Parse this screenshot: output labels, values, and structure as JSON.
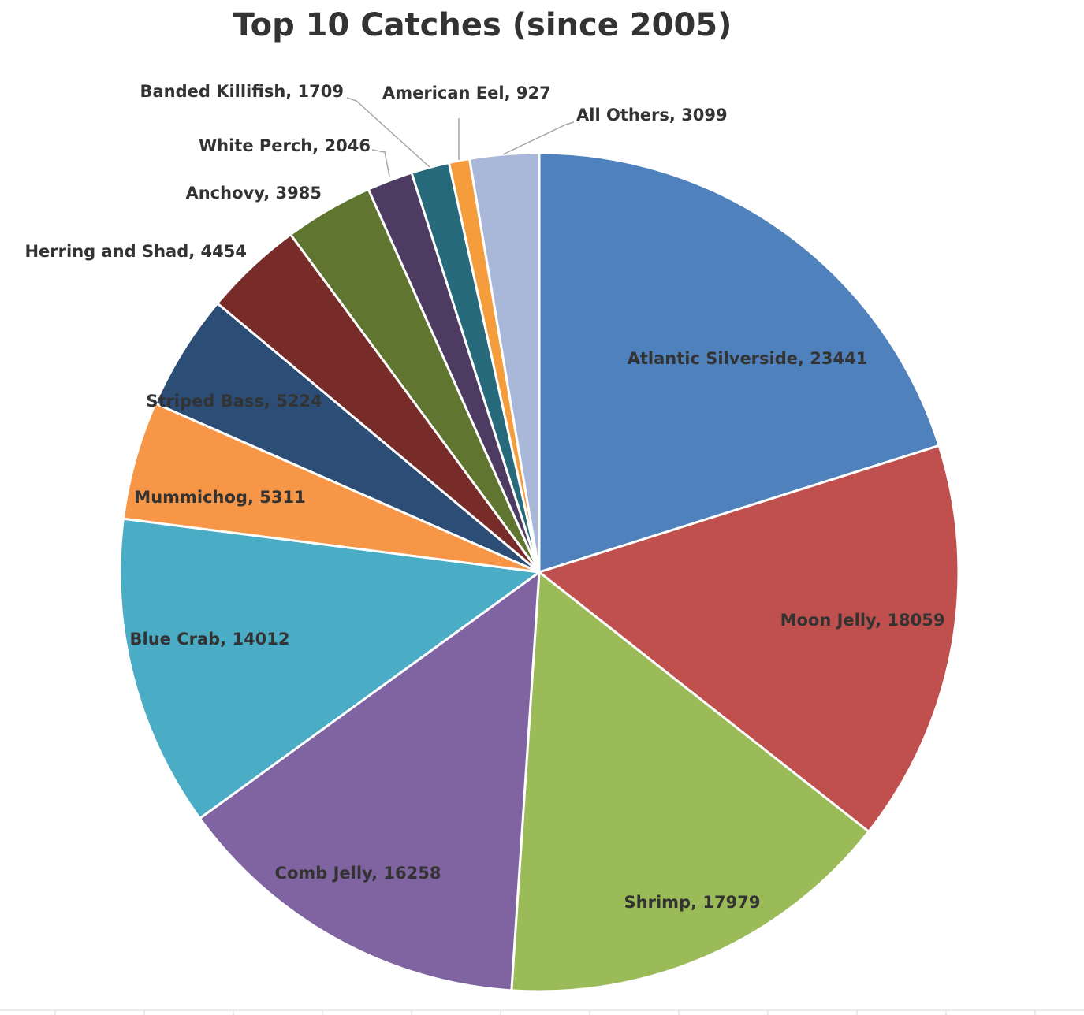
{
  "chart_data": {
    "type": "pie",
    "title": "Top 10 Catches (since 2005)",
    "values": [
      23441,
      18059,
      17979,
      16258,
      14012,
      5311,
      5224,
      4454,
      3985,
      2046,
      1709,
      927,
      3099
    ],
    "value_labels": [
      "Atlantic Silverside, 23441",
      "Moon Jelly, 18059",
      "Shrimp, 17979",
      "Comb Jelly, 16258",
      "Blue Crab, 14012",
      "Mummichog, 5311",
      "Striped Bass, 5224",
      "Herring and Shad, 4454",
      "Anchovy, 3985",
      "White Perch, 2046",
      "Banded Killifish, 1709",
      "American Eel, 927",
      "All Others, 3099"
    ],
    "colors": [
      "#4f81bd",
      "#c0504d",
      "#9bbb59",
      "#8064a2",
      "#4bacc6",
      "#f79646",
      "#2c4d75",
      "#772c2a",
      "#5f7530",
      "#4d3b62",
      "#276a7c",
      "#f59d3d",
      "#a9b8d8"
    ]
  }
}
